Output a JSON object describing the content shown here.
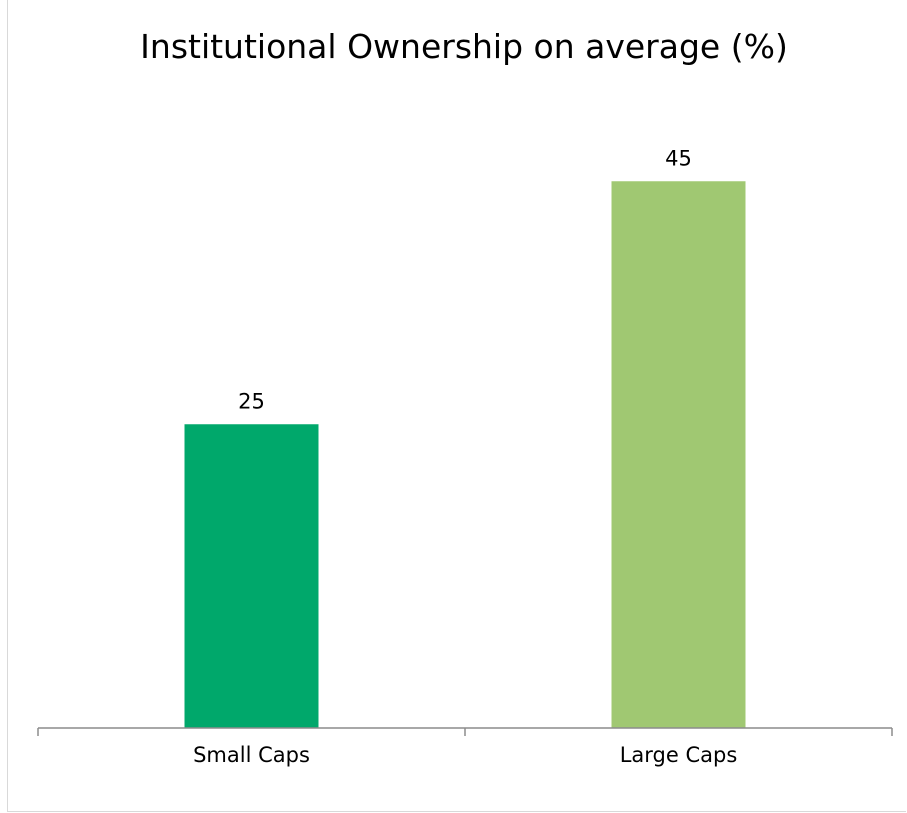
{
  "chart_data": {
    "type": "bar",
    "title": "Institutional Ownership on average (%)",
    "categories": [
      "Small Caps",
      "Large Caps"
    ],
    "values": [
      25,
      45
    ],
    "data_labels": [
      "25",
      "45"
    ],
    "colors": [
      "#00a86b",
      "#a0c872"
    ],
    "axis_color": "#8c8c8c",
    "ylim": [
      0,
      45
    ],
    "grid": false,
    "legend": "none"
  }
}
